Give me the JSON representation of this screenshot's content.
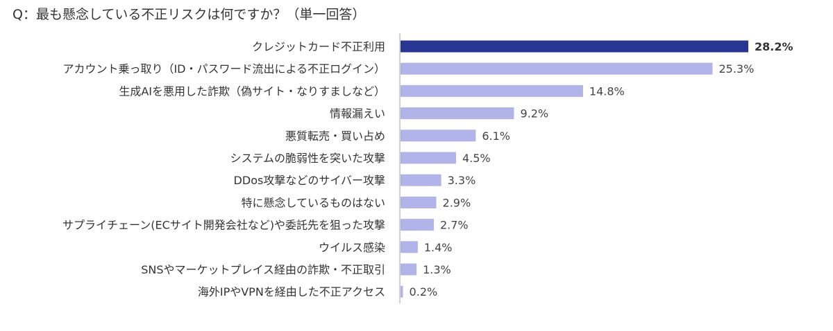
{
  "chart_data": {
    "type": "bar",
    "orientation": "horizontal",
    "title": "Q：最も懸念している不正リスクは何ですか？（単一回答）",
    "categories": [
      "クレジットカード不正利用",
      "アカウント乗っ取り（ID・パスワード流出による不正ログイン）",
      "生成AIを悪用した詐欺（偽サイト・なりすましなど）",
      "情報漏えい",
      "悪質転売・買い占め",
      "システムの脆弱性を突いた攻撃",
      "DDos攻撃などのサイバー攻撃",
      "特に懸念しているものはない",
      "サプライチェーン(ECサイト開発会社など)や委託先を狙った攻撃",
      "ウイルス感染",
      "SNSやマーケットプレイス経由の詐欺・不正取引",
      "海外IPやVPNを経由した不正アクセス"
    ],
    "values": [
      28.2,
      25.3,
      14.8,
      9.2,
      6.1,
      4.5,
      3.3,
      2.9,
      2.7,
      1.4,
      1.3,
      0.2
    ],
    "value_labels": [
      "28.2%",
      "25.3%",
      "14.8%",
      "9.2%",
      "6.1%",
      "4.5%",
      "3.3%",
      "2.9%",
      "2.7%",
      "1.4%",
      "1.3%",
      "0.2%"
    ],
    "unit": "%",
    "xlim": [
      0,
      28.2
    ],
    "grid": false,
    "axis_visible": false,
    "highlight_index": 0,
    "colors": {
      "highlight": "#283593",
      "default": "#b0b4e8",
      "axis": "#d0d0d0"
    }
  }
}
